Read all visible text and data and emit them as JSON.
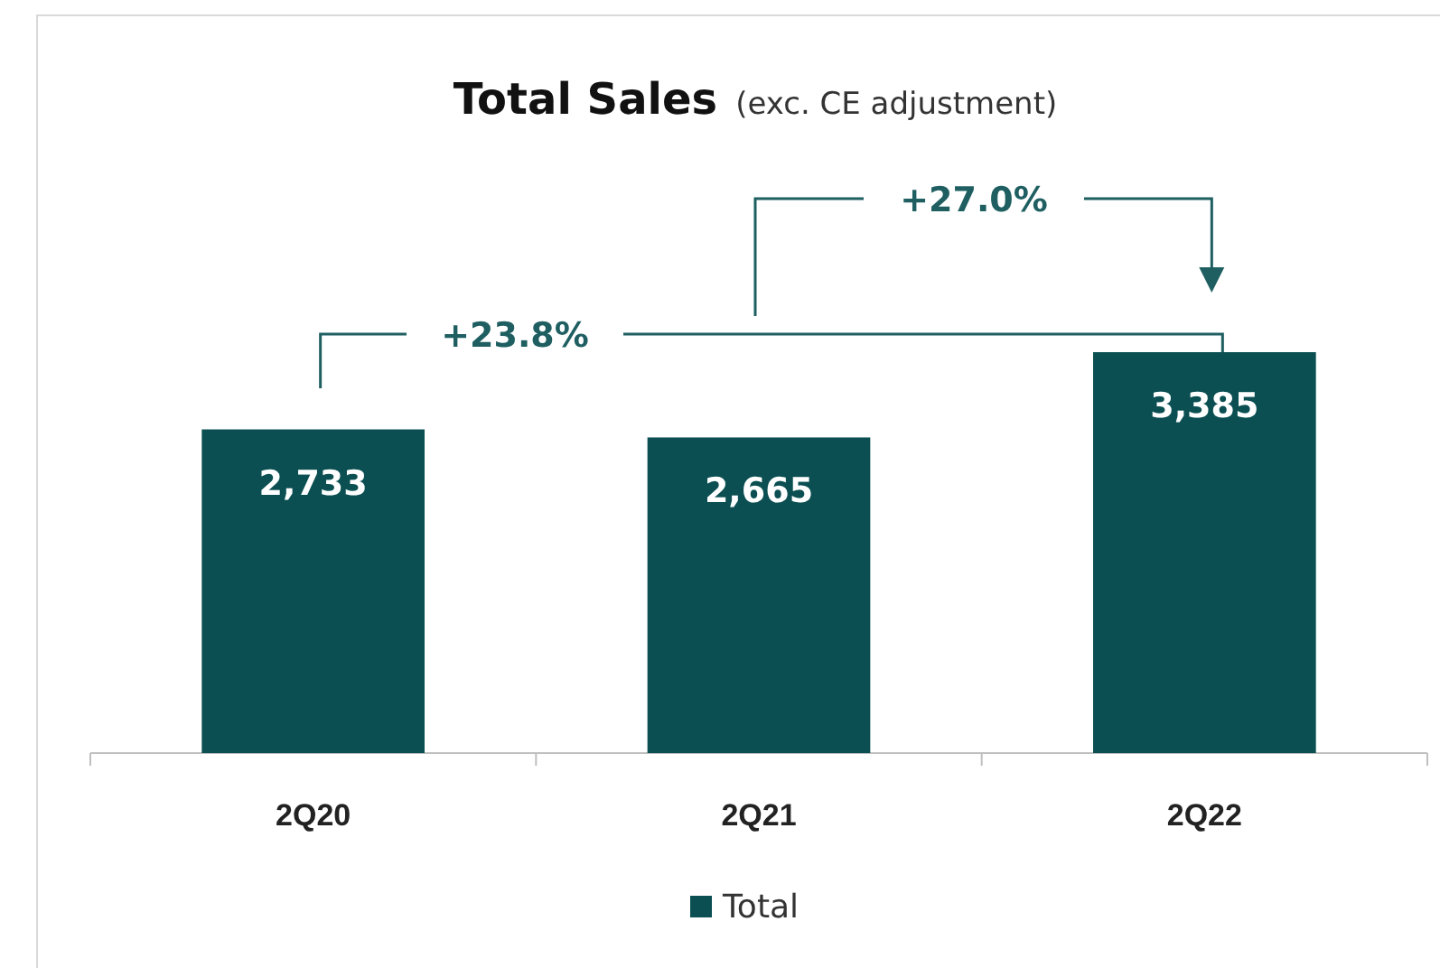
{
  "chart_data": {
    "type": "bar",
    "title": "Total Sales",
    "subtitle": "(exc. CE adjustment)",
    "categories": [
      "2Q20",
      "2Q21",
      "2Q22"
    ],
    "series": [
      {
        "name": "Total",
        "color": "#0b4f52",
        "values": [
          2733,
          2665,
          3385
        ],
        "value_labels": [
          "2,733",
          "2,665",
          "3,385"
        ]
      }
    ],
    "legend": "bottom",
    "annotations": [
      "+23.8%",
      "+27.0%"
    ]
  }
}
